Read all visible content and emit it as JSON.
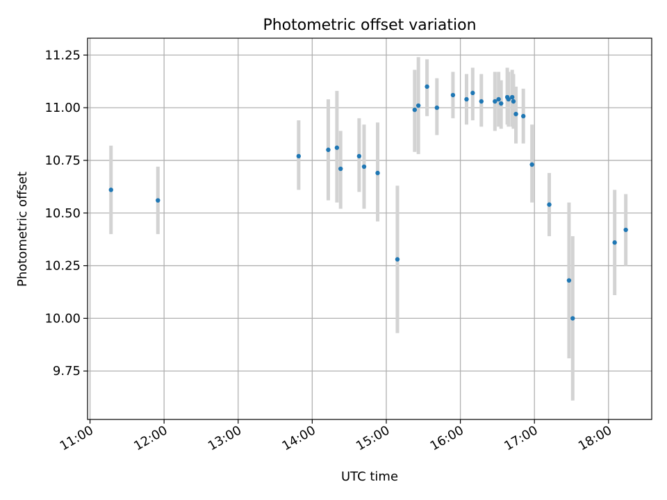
{
  "chart_data": {
    "type": "scatter",
    "title": "Photometric offset variation",
    "xlabel": "UTC time",
    "ylabel": "Photometric offset",
    "xlim": [
      "10:58",
      "18:35"
    ],
    "ylim": [
      9.52,
      11.33
    ],
    "x_ticks": [
      "11:00",
      "12:00",
      "13:00",
      "14:00",
      "15:00",
      "16:00",
      "17:00",
      "18:00"
    ],
    "y_ticks": [
      9.75,
      10.0,
      10.25,
      10.5,
      10.75,
      11.0,
      11.25
    ],
    "y_tick_labels": [
      "9.75",
      "10.00",
      "10.25",
      "10.50",
      "10.75",
      "11.00",
      "11.25"
    ],
    "grid": true,
    "colors": {
      "point": "#1f77b4",
      "error_bar": "#d3d3d3",
      "grid": "#b0b0b0"
    },
    "points": [
      {
        "x": "11:17",
        "y": 10.61,
        "lo": 10.4,
        "hi": 10.82
      },
      {
        "x": "11:55",
        "y": 10.56,
        "lo": 10.4,
        "hi": 10.72
      },
      {
        "x": "13:49",
        "y": 10.77,
        "lo": 10.61,
        "hi": 10.94
      },
      {
        "x": "14:13",
        "y": 10.8,
        "lo": 10.56,
        "hi": 11.04
      },
      {
        "x": "14:20",
        "y": 10.81,
        "lo": 10.55,
        "hi": 11.08
      },
      {
        "x": "14:23",
        "y": 10.71,
        "lo": 10.52,
        "hi": 10.89
      },
      {
        "x": "14:38",
        "y": 10.77,
        "lo": 10.6,
        "hi": 10.95
      },
      {
        "x": "14:42",
        "y": 10.72,
        "lo": 10.52,
        "hi": 10.92
      },
      {
        "x": "14:53",
        "y": 10.69,
        "lo": 10.46,
        "hi": 10.93
      },
      {
        "x": "15:09",
        "y": 10.28,
        "lo": 9.93,
        "hi": 10.63
      },
      {
        "x": "15:23",
        "y": 10.99,
        "lo": 10.79,
        "hi": 11.18
      },
      {
        "x": "15:26",
        "y": 11.01,
        "lo": 10.78,
        "hi": 11.24
      },
      {
        "x": "15:33",
        "y": 11.1,
        "lo": 10.96,
        "hi": 11.23
      },
      {
        "x": "15:41",
        "y": 11.0,
        "lo": 10.87,
        "hi": 11.14
      },
      {
        "x": "15:54",
        "y": 11.06,
        "lo": 10.95,
        "hi": 11.17
      },
      {
        "x": "16:05",
        "y": 11.04,
        "lo": 10.92,
        "hi": 11.16
      },
      {
        "x": "16:10",
        "y": 11.07,
        "lo": 10.94,
        "hi": 11.19
      },
      {
        "x": "16:17",
        "y": 11.03,
        "lo": 10.91,
        "hi": 11.16
      },
      {
        "x": "16:28",
        "y": 11.03,
        "lo": 10.89,
        "hi": 11.17
      },
      {
        "x": "16:31",
        "y": 11.04,
        "lo": 10.91,
        "hi": 11.17
      },
      {
        "x": "16:33",
        "y": 11.02,
        "lo": 10.9,
        "hi": 11.13
      },
      {
        "x": "16:38",
        "y": 11.05,
        "lo": 10.92,
        "hi": 11.19
      },
      {
        "x": "16:39",
        "y": 11.04,
        "lo": 10.91,
        "hi": 11.17
      },
      {
        "x": "16:42",
        "y": 11.05,
        "lo": 10.91,
        "hi": 11.18
      },
      {
        "x": "16:43",
        "y": 11.03,
        "lo": 10.9,
        "hi": 11.16
      },
      {
        "x": "16:45",
        "y": 10.97,
        "lo": 10.83,
        "hi": 11.1
      },
      {
        "x": "16:51",
        "y": 10.96,
        "lo": 10.83,
        "hi": 11.09
      },
      {
        "x": "16:58",
        "y": 10.73,
        "lo": 10.55,
        "hi": 10.92
      },
      {
        "x": "17:12",
        "y": 10.54,
        "lo": 10.39,
        "hi": 10.69
      },
      {
        "x": "17:28",
        "y": 10.18,
        "lo": 9.81,
        "hi": 10.55
      },
      {
        "x": "17:31",
        "y": 10.0,
        "lo": 9.61,
        "hi": 10.39
      },
      {
        "x": "18:05",
        "y": 10.36,
        "lo": 10.11,
        "hi": 10.61
      },
      {
        "x": "18:14",
        "y": 10.42,
        "lo": 10.25,
        "hi": 10.59
      }
    ]
  }
}
